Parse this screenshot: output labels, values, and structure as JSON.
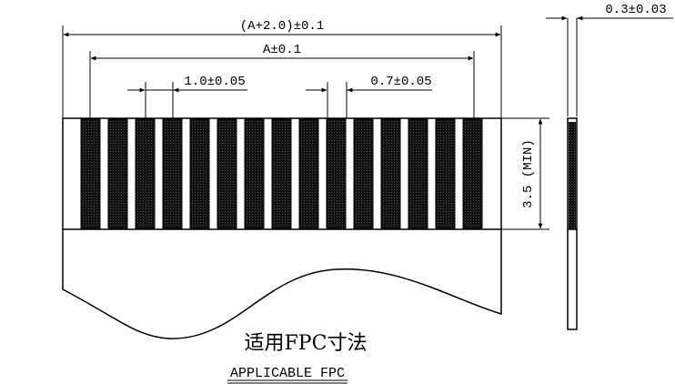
{
  "dimensions": {
    "overall_width": "(A+2.0)±0.1",
    "contact_span": "A±0.1",
    "pitch": "1.0±0.05",
    "contact_width": "0.7±0.05",
    "contact_length": "3.5 (MIN)",
    "thickness": "0.3±0.03"
  },
  "caption": {
    "chinese": "适用FPC寸法",
    "english": "APPLICABLE FPC"
  },
  "contacts": {
    "count": 15
  },
  "colors": {
    "ink": "#000000",
    "contact_fill": "#1a1a1a"
  }
}
